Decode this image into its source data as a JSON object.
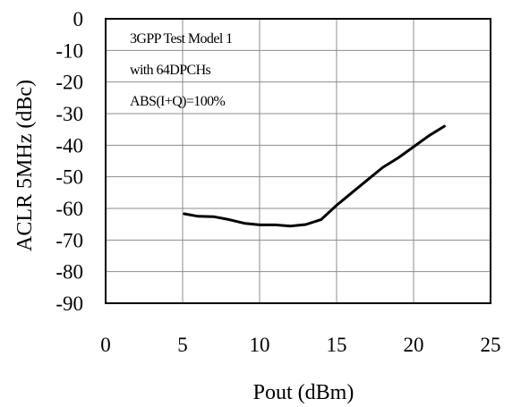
{
  "chart_data": {
    "type": "line",
    "xlabel": "Pout (dBm)",
    "ylabel": "ACLR 5MHz (dBc)",
    "xlim": [
      0,
      25
    ],
    "ylim": [
      -90,
      0
    ],
    "xticks": [
      0,
      5,
      10,
      15,
      20,
      25
    ],
    "yticks": [
      0,
      -10,
      -20,
      -30,
      -40,
      -50,
      -60,
      -70,
      -80,
      -90
    ],
    "xtick_labels": [
      "0",
      "5",
      "10",
      "15",
      "20",
      "25"
    ],
    "ytick_labels": [
      "0",
      "-10",
      "-20",
      "-30",
      "-40",
      "-50",
      "-60",
      "-70",
      "-80",
      "-90"
    ],
    "grid": true,
    "annotations": [
      "3GPP Test Model 1",
      "with 64DPCHs",
      "ABS(I+Q)=100%"
    ],
    "series": [
      {
        "x": [
          5.1,
          6,
          7,
          8,
          9,
          10,
          11,
          12,
          13,
          14,
          15,
          16,
          17,
          18,
          19,
          20,
          21,
          22
        ],
        "y": [
          -61.7,
          -62.5,
          -62.6,
          -63.5,
          -64.7,
          -65.2,
          -65.2,
          -65.6,
          -65.1,
          -63.5,
          -59.0,
          -55.0,
          -51.0,
          -47.0,
          -44.0,
          -40.5,
          -37.0,
          -34.0
        ],
        "color": "#000000"
      }
    ]
  }
}
